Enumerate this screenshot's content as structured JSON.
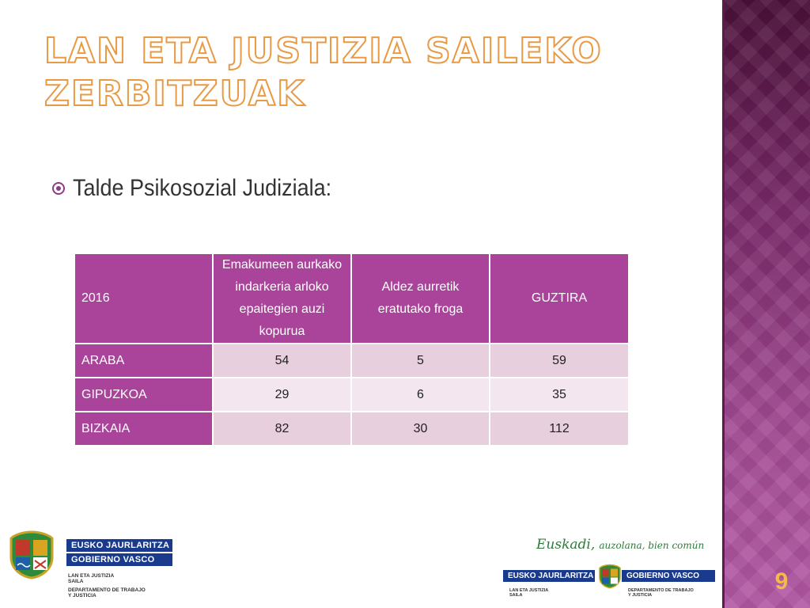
{
  "slide": {
    "title_line1": "LAN ETA JUSTIZIA SAILEKO",
    "title_line2": "ZERBITZUAK",
    "bullet": "Talde Psikosozial Judiziala:",
    "number": "9"
  },
  "table": {
    "headers": [
      "2016",
      "Emakumeen aurkako indarkeria arloko epaitegien auzi kopurua",
      "Aldez aurretik eratutako froga",
      "GUZTIRA"
    ],
    "rows": [
      {
        "name": "ARABA",
        "values": [
          "54",
          "5",
          "59"
        ]
      },
      {
        "name": "GIPUZKOA",
        "values": [
          "29",
          "6",
          "35"
        ]
      },
      {
        "name": "BIZKAIA",
        "values": [
          "82",
          "30",
          "112"
        ]
      }
    ]
  },
  "logos": {
    "left": {
      "line1": "EUSKO JAURLARITZA",
      "line2": "GOBIERNO VASCO",
      "dept1a": "LAN ETA JUSTIZIA",
      "dept1b": "SAILA",
      "dept2a": "DEPARTAMENTO DE TRABAJO",
      "dept2b": "Y JUSTICIA"
    },
    "right": {
      "slogan_main": "Euskadi,",
      "slogan_rest": "auzolana, bien común",
      "bar_left": "EUSKO JAURLARITZA",
      "bar_right": "GOBIERNO VASCO",
      "small_left_a": "LAN ETA JUSTIZIA",
      "small_left_b": "SAILA",
      "small_right_a": "DEPARTAMENTO DE TRABAJO",
      "small_right_b": "Y JUSTICIA"
    }
  },
  "colors": {
    "accent_purple": "#a9449a",
    "title_outline": "#e89a44",
    "band_dark": "#4a1038",
    "logo_blue": "#1a3a8e",
    "slogan_green": "#2f7a3a"
  }
}
